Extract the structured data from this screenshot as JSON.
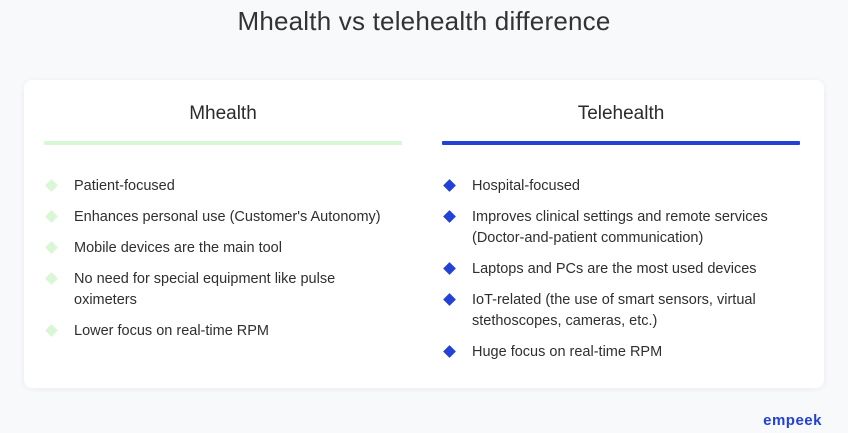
{
  "title": "Mhealth vs telehealth difference",
  "colors": {
    "mhealth_accent": "#d8f7d5",
    "telehealth_accent": "#2341d6"
  },
  "columns": [
    {
      "header": "Mhealth",
      "items": [
        "Patient-focused",
        "Enhances personal use (Customer's Autonomy)",
        "Mobile devices are the main tool",
        "No need for special equipment like pulse oximeters",
        "Lower focus on real-time RPM"
      ]
    },
    {
      "header": "Telehealth",
      "items": [
        "Hospital-focused",
        "Improves clinical settings and remote services (Doctor-and-patient communication)",
        "Laptops and PCs are the most used devices",
        "IoT-related (the use of smart sensors, virtual stethoscopes, cameras, etc.)",
        "Huge focus on real-time RPM"
      ]
    }
  ],
  "brand": {
    "logo_text": "empeek"
  }
}
